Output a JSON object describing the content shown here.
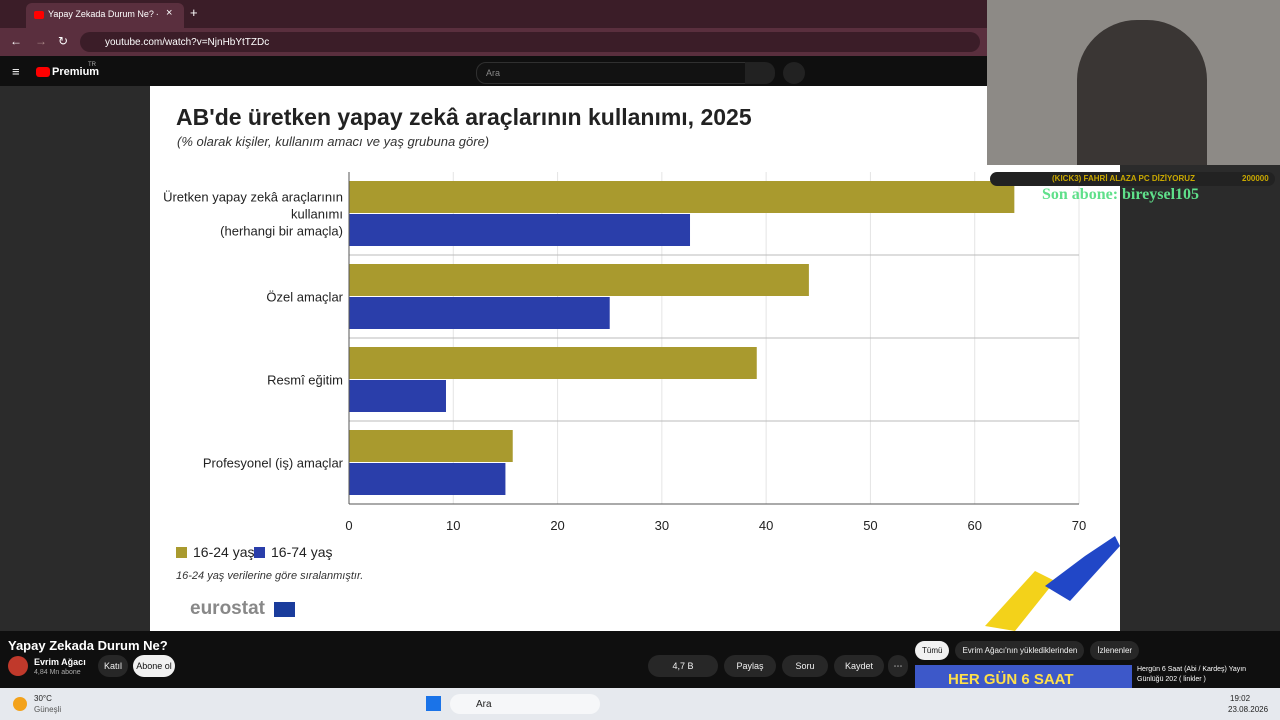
{
  "browser": {
    "tab_title": "Yapay Zekada Durum Ne? - You",
    "url": "youtube.com/watch?v=NjnHbYtTZDc"
  },
  "youtube": {
    "logo": "Premium",
    "region": "TR",
    "search_placeholder": "Ara"
  },
  "chart_data": {
    "type": "bar",
    "orientation": "horizontal",
    "title": "AB'de üretken yapay zekâ araçlarının kullanımı, 2025",
    "subtitle": "(% olarak kişiler, kullanım amacı ve yaş grubuna göre)",
    "categories": [
      "Üretken yapay zekâ araçlarının kullanımı\n(herhangi bir amaçla)",
      "Özel amaçlar",
      "Resmî eğitim",
      "Profesyonel (iş) amaçlar"
    ],
    "series": [
      {
        "name": "16-24 yaş",
        "color": "#a99a2e",
        "values": [
          63.8,
          44.1,
          39.1,
          15.7
        ]
      },
      {
        "name": "16-74 yaş",
        "color": "#2a3eaa",
        "values": [
          32.7,
          25.0,
          9.3,
          15.0
        ]
      }
    ],
    "xlim": [
      0,
      70
    ],
    "xticks": [
      0,
      10,
      20,
      30,
      40,
      50,
      60,
      70
    ],
    "grid": true,
    "note": "16-24 yaş verilerine göre sıralanmıştır.",
    "source": "eurostat"
  },
  "stream_overlay": {
    "ticker": "(KICK3) FAHRİ ALAZA PC DİZİYORUZ",
    "goal": "200000",
    "last_subscriber": "Son abone: bireysel105"
  },
  "video": {
    "title": "Yapay Zekada Durum Ne?",
    "channel": "Evrim Ağacı",
    "subscribers": "4,84 Mn abone",
    "join": "Katıl",
    "subscribe": "Abone ol",
    "likes": "4,7 B",
    "share": "Paylaş",
    "ask": "Soru",
    "save": "Kaydet"
  },
  "sidebar": {
    "chips": [
      "Tümü",
      "Evrim Ağacı'nın yüklediklerinden",
      "İzlenenler"
    ],
    "thumbnail_text": "HER GÜN 6 SAAT",
    "next_title": "Hergün 6 Saat (Abi / Kardeş) Yayın Günlüğü 202 ( linkler )"
  },
  "taskbar": {
    "temperature": "30°C",
    "weather": "Güneşli",
    "search": "Ara",
    "time": "19:02",
    "date": "23.08.2026"
  }
}
